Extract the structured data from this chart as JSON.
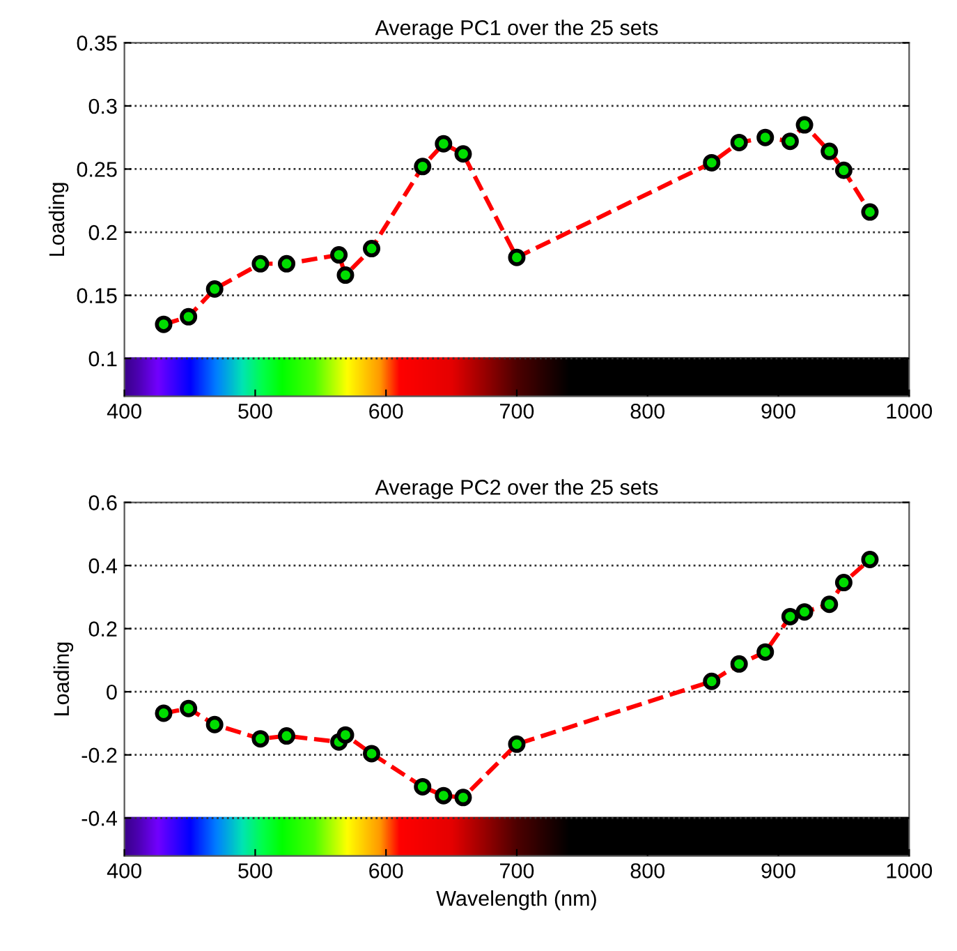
{
  "chart_data": [
    {
      "type": "line",
      "title": "Average PC1 over the 25 sets",
      "ylabel": "Loading",
      "xlim": [
        400,
        1000
      ],
      "xticks": [
        400,
        500,
        600,
        700,
        800,
        900,
        1000
      ],
      "ylim": [
        0.07,
        0.35
      ],
      "yticks": [
        0.1,
        0.15,
        0.2,
        0.25,
        0.3,
        0.35
      ],
      "grid": "y",
      "marker": "circle",
      "line_style": "dashed",
      "series": [
        {
          "color": "#ff0000",
          "x": [
            430,
            449,
            469,
            504,
            524,
            564,
            569,
            589,
            628,
            644,
            659,
            700,
            849,
            870,
            890,
            909,
            920,
            939,
            950,
            970
          ],
          "values": [
            0.127,
            0.133,
            0.155,
            0.175,
            0.175,
            0.182,
            0.166,
            0.187,
            0.252,
            0.27,
            0.262,
            0.18,
            0.255,
            0.271,
            0.275,
            0.272,
            0.285,
            0.264,
            0.249,
            0.216
          ]
        }
      ]
    },
    {
      "type": "line",
      "title": "Average PC2 over the 25 sets",
      "xlabel": "Wavelength (nm)",
      "ylabel": "Loading",
      "xlim": [
        400,
        1000
      ],
      "xticks": [
        400,
        500,
        600,
        700,
        800,
        900,
        1000
      ],
      "ylim": [
        -0.52,
        0.6
      ],
      "yticks": [
        {
          "value": -0.4,
          "label": "-0.4"
        },
        {
          "value": -0.2,
          "label": "-0.2"
        },
        0,
        0.2,
        0.4,
        0.6
      ],
      "grid": "y",
      "marker": "circle",
      "line_style": "dashed",
      "series": [
        {
          "color": "#ff0000",
          "x": [
            430,
            449,
            469,
            504,
            524,
            564,
            569,
            589,
            628,
            644,
            659,
            700,
            849,
            870,
            890,
            909,
            920,
            939,
            950,
            970
          ],
          "values": [
            -0.068,
            -0.053,
            -0.104,
            -0.149,
            -0.14,
            -0.159,
            -0.137,
            -0.196,
            -0.301,
            -0.329,
            -0.335,
            -0.166,
            0.033,
            0.088,
            0.126,
            0.238,
            0.253,
            0.277,
            0.346,
            0.419
          ]
        }
      ]
    }
  ]
}
